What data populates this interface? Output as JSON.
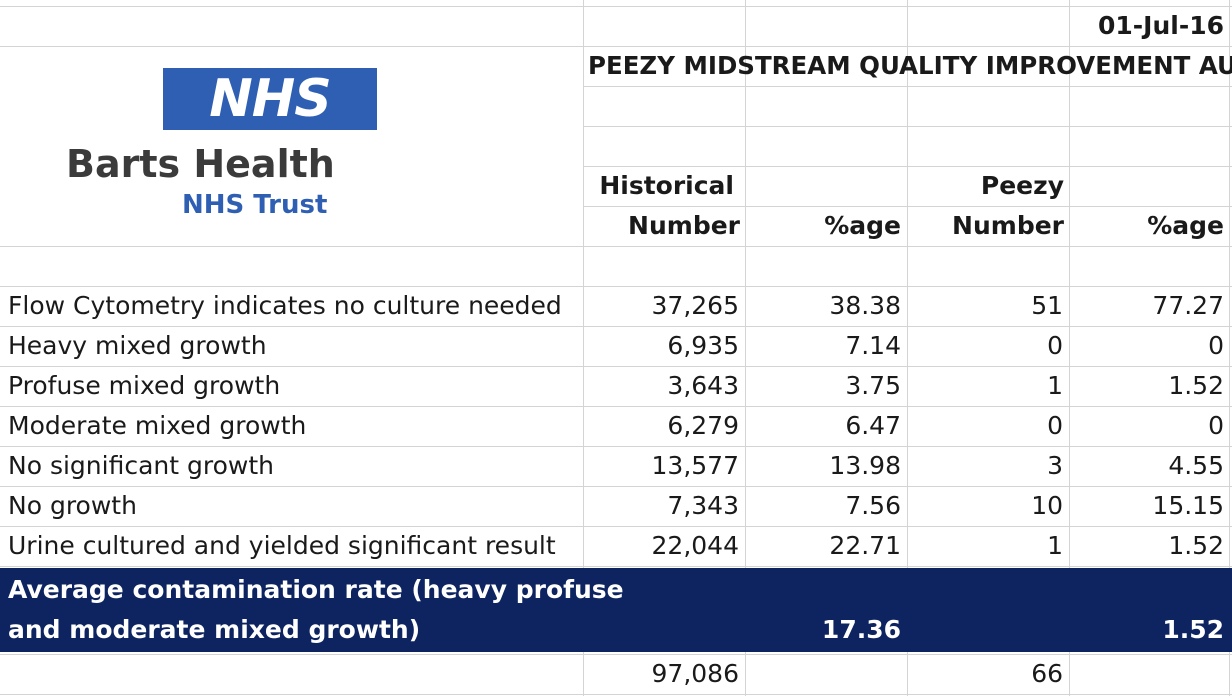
{
  "header": {
    "date": "01-Jul-16",
    "title": "PEEZY  MIDSTREAM QUALITY IMPROVEMENT AUDIT"
  },
  "logo": {
    "mark": "NHS",
    "org": "Barts Health",
    "trust": "NHS Trust",
    "colors": {
      "nhs_blue": "#2f5fb3",
      "org_gray": "#3b3b3b"
    }
  },
  "columns": {
    "historical_top": "Historical",
    "historical_bottom": "Number",
    "hist_pct": "%age",
    "peezy_top": "Peezy",
    "peezy_bottom": "Number",
    "peezy_pct": "%age"
  },
  "rows": [
    {
      "label": "Flow Cytometry indicates no culture needed",
      "hist_num": "37,265",
      "hist_pct": "38.38",
      "peezy_num": "51",
      "peezy_pct": "77.27"
    },
    {
      "label": "Heavy mixed growth",
      "hist_num": "6,935",
      "hist_pct": "7.14",
      "peezy_num": "0",
      "peezy_pct": "0"
    },
    {
      "label": "Profuse mixed growth",
      "hist_num": "3,643",
      "hist_pct": "3.75",
      "peezy_num": "1",
      "peezy_pct": "1.52"
    },
    {
      "label": "Moderate mixed growth",
      "hist_num": "6,279",
      "hist_pct": "6.47",
      "peezy_num": "0",
      "peezy_pct": "0"
    },
    {
      "label": "No significant growth",
      "hist_num": "13,577",
      "hist_pct": "13.98",
      "peezy_num": "3",
      "peezy_pct": "4.55"
    },
    {
      "label": "No growth",
      "hist_num": "7,343",
      "hist_pct": "7.56",
      "peezy_num": "10",
      "peezy_pct": "15.15"
    },
    {
      "label": "Urine cultured and yielded significant result",
      "hist_num": "22,044",
      "hist_pct": "22.71",
      "peezy_num": "1",
      "peezy_pct": "1.52"
    }
  ],
  "summary": {
    "label_line1": "Average contamination rate (heavy profuse",
    "label_line2": "and moderate mixed growth)",
    "hist_pct": "17.36",
    "peezy_pct": "1.52",
    "band_color": "#0d2460"
  },
  "totals": {
    "hist_num": "97,086",
    "peezy_num": "66"
  }
}
